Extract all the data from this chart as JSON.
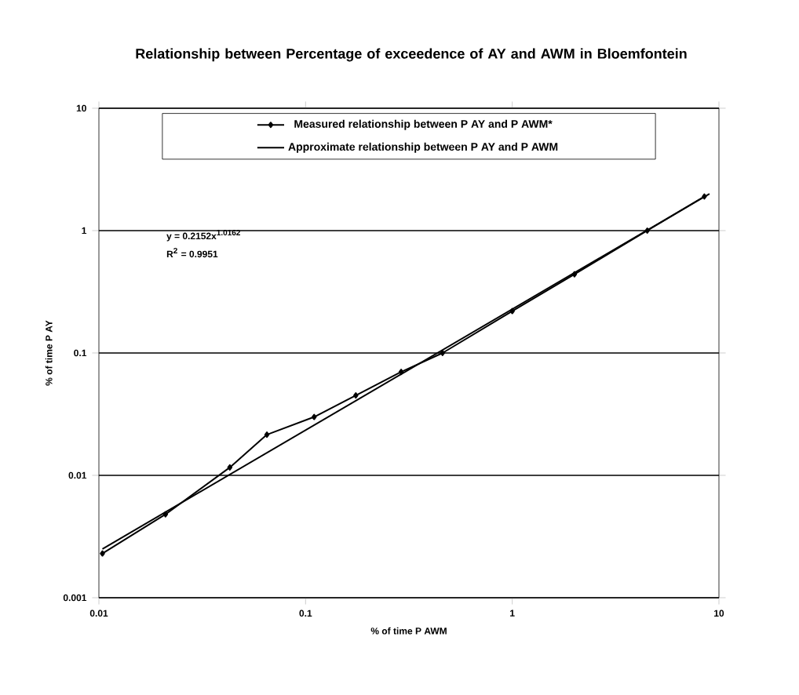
{
  "chart_data": {
    "type": "line",
    "title": "Relationship between Percentage of exceedence of  AY and  AWM in Bloemfontein",
    "xlabel": "% of time P AWM",
    "ylabel": "% of time P AY",
    "annotations": [
      "y = 0.2152x$^{1.0162}$",
      "R$^{2}$ = 0.9951"
    ],
    "log": "xy",
    "grid": "y",
    "legend": "top",
    "xlim": [
      0.01,
      10
    ],
    "ylim": [
      0.001,
      10
    ],
    "xticks": [
      0.01,
      0.1,
      1,
      10
    ],
    "yticks": [
      0.001,
      0.01,
      0.1,
      1,
      10
    ],
    "series": [
      {
        "name": "Measured relationship between P AY and P AWM*",
        "color": "#000000",
        "marker": "diamond",
        "x": [
          0.0104,
          0.021,
          0.043,
          0.065,
          0.11,
          0.175,
          0.29,
          0.46,
          1.0,
          2.0,
          4.5,
          8.5
        ],
        "values": [
          0.0023,
          0.0048,
          0.0116,
          0.0215,
          0.03,
          0.045,
          0.07,
          0.1,
          0.22,
          0.44,
          1.0,
          1.9
        ]
      },
      {
        "name": "Approximate relationship between P AY and P AWM",
        "color": "#000000",
        "marker": "none",
        "x": [
          0.0104,
          9
        ],
        "values": [
          0.0025,
          2.0
        ]
      }
    ]
  }
}
